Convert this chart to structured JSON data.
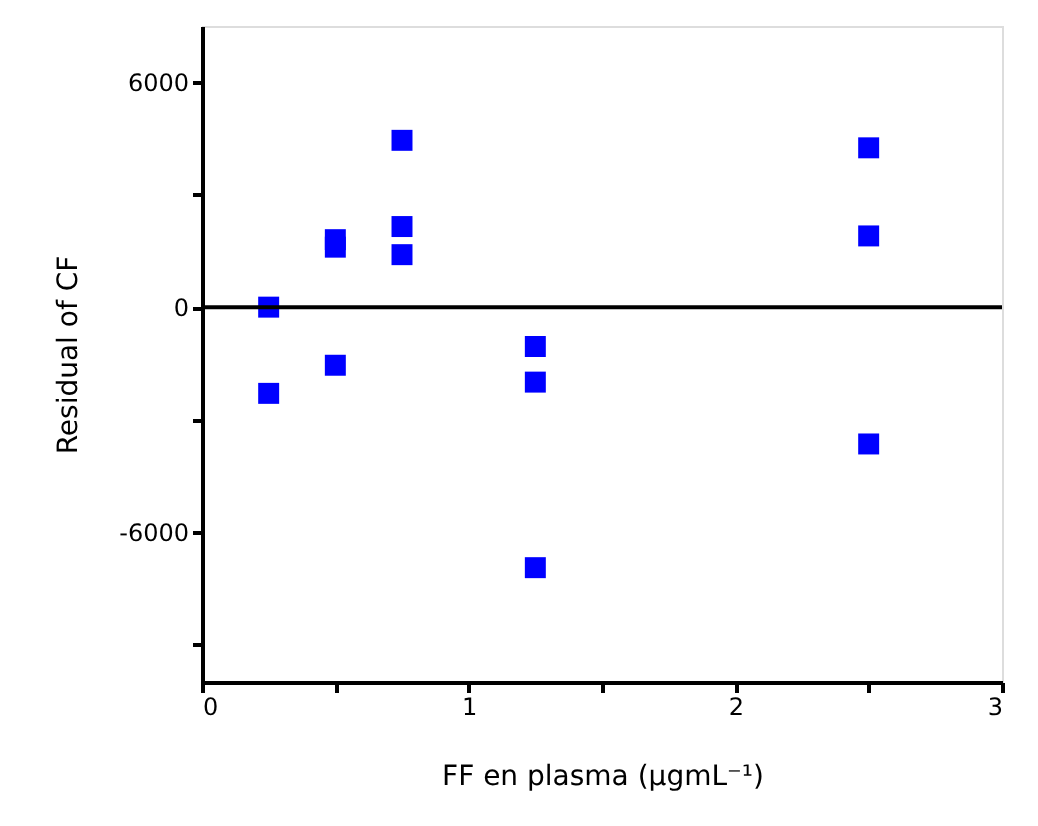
{
  "chart_data": {
    "type": "scatter",
    "xlabel": "FF en plasma (µgmL⁻¹)",
    "ylabel": "Residual of CF",
    "x": [
      0.25,
      0.25,
      0.5,
      0.5,
      0.5,
      0.75,
      0.75,
      0.75,
      1.25,
      1.25,
      1.25,
      2.5,
      2.5,
      2.5
    ],
    "series": [
      {
        "color": "#0000ff",
        "values": [
          0,
          -2300,
          1800,
          1600,
          -1550,
          4450,
          2150,
          1400,
          -1050,
          -2000,
          -6950,
          4250,
          1900,
          -3650
        ]
      }
    ],
    "marker": "square",
    "grid": false,
    "xlim": [
      0,
      3
    ],
    "xticks": [
      0,
      {
        "value": 0.5,
        "label": null
      },
      1,
      {
        "value": 1.5,
        "label": null
      },
      2,
      {
        "value": 2.5,
        "label": null
      },
      3
    ],
    "ylim": [
      -10000,
      7500
    ],
    "yticks": [
      {
        "value": -9000,
        "label": null
      },
      -6000,
      {
        "value": -3000,
        "label": null
      },
      0,
      {
        "value": 3000,
        "label": null
      },
      6000
    ],
    "ref_lines": [
      {
        "axis": "y",
        "value": 0,
        "color": "#000000"
      }
    ]
  }
}
